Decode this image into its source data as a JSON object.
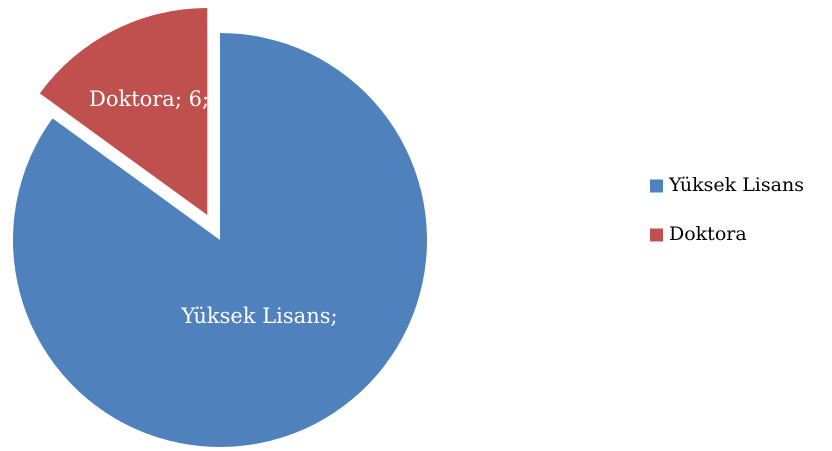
{
  "chart_data": {
    "type": "pie",
    "title": "",
    "categories": [
      "Yüksek Lisans",
      "Doktora"
    ],
    "values": [
      34,
      6
    ],
    "colors": [
      "#4f81bd",
      "#c0504d"
    ],
    "exploded": [
      "Doktora"
    ],
    "data_labels": [
      "Yüksek Lisans;",
      "Doktora; 6;"
    ],
    "legend": {
      "position": "right",
      "entries": [
        "Yüksek Lisans",
        "Doktora"
      ]
    }
  }
}
